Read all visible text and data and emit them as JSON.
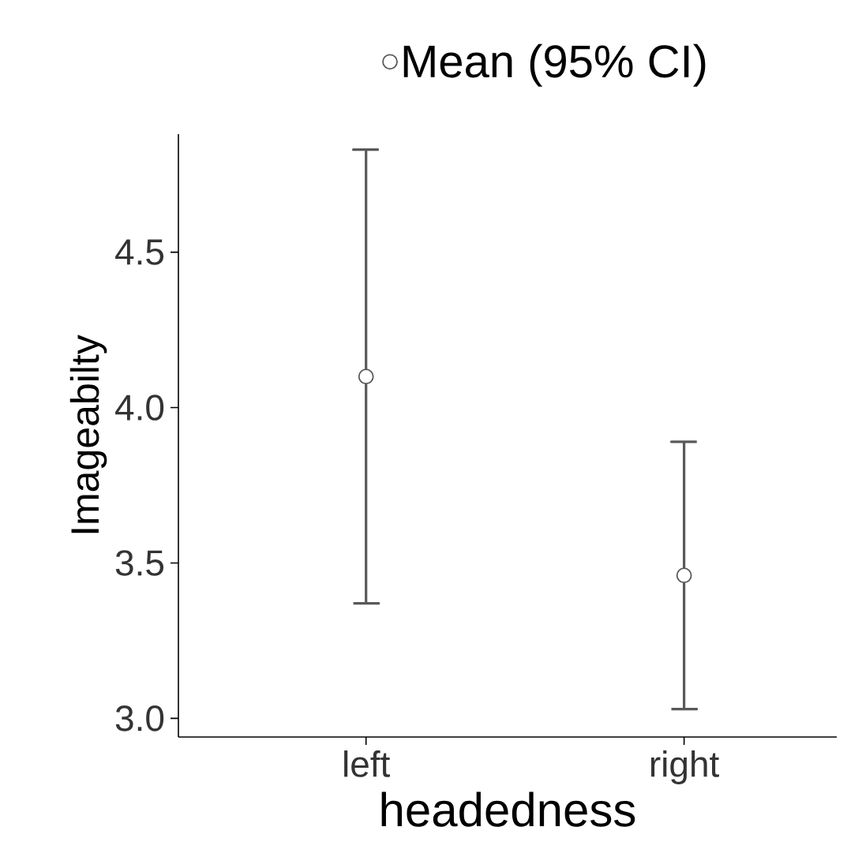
{
  "chart_data": {
    "type": "scatter",
    "xlabel": "headedness",
    "ylabel": "Imageabilty",
    "categories": [
      "left",
      "right"
    ],
    "series": [
      {
        "name": "Mean (95% CI)",
        "color": "#595959",
        "values": [
          4.1,
          3.46
        ],
        "errors": [
          [
            3.37,
            4.83
          ],
          [
            3.03,
            3.89
          ]
        ]
      }
    ],
    "ylim": [
      2.94,
      4.88
    ],
    "yticks": [
      {
        "value": 3,
        "label": "3.0"
      },
      3.5,
      {
        "value": 4,
        "label": "4.0"
      },
      4.5
    ],
    "marker": "circle",
    "legend": "top",
    "grid": false
  }
}
